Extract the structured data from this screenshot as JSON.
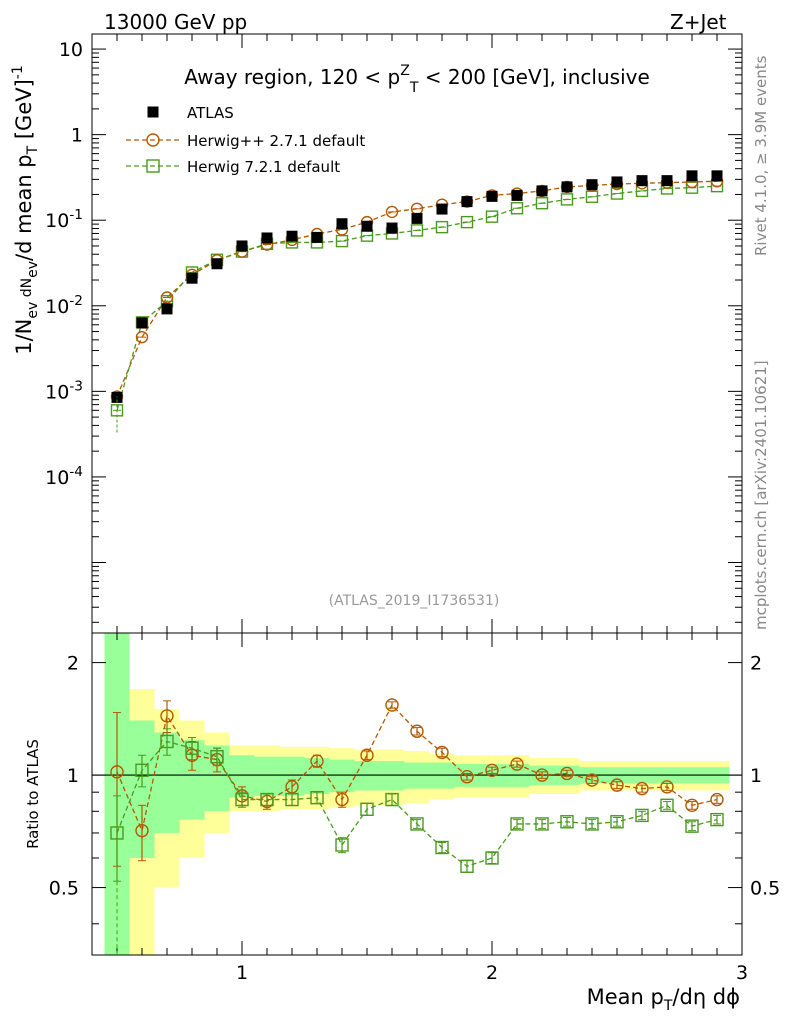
{
  "header": {
    "left": "13000 GeV pp",
    "right": "Z+Jet"
  },
  "side_labels": {
    "rivet": "Rivet 4.1.0, ≥ 3.9M events",
    "mcplots": "mcplots.cern.ch [arXiv:2401.10621]"
  },
  "chart_data": [
    {
      "type": "scatter",
      "title": "Away region, 120 < p_T^Z < 200 [GeV], inclusive",
      "watermark": "(ATLAS_2019_I1736531)",
      "ylabel": "1/N_ev dN_ev/d mean p_T [GeV]^-1",
      "yscale": "log",
      "ylim": [
        1.5e-06,
        15
      ],
      "xlim": [
        0.4,
        3.0
      ],
      "ytick_labels": [
        "10",
        "1",
        "10^-1",
        "10^-2",
        "10^-3",
        "10^-4"
      ],
      "legend_position": "top-left",
      "x": [
        0.5,
        0.6,
        0.7,
        0.8,
        0.9,
        1.0,
        1.1,
        1.2,
        1.3,
        1.4,
        1.5,
        1.6,
        1.7,
        1.8,
        1.9,
        2.0,
        2.1,
        2.2,
        2.3,
        2.4,
        2.5,
        2.6,
        2.7,
        2.8,
        2.9
      ],
      "series": [
        {
          "name": "ATLAS",
          "color": "#000000",
          "marker": "filled-square",
          "values": [
            0.00085,
            0.0063,
            0.0092,
            0.021,
            0.031,
            0.05,
            0.062,
            0.065,
            0.063,
            0.091,
            0.085,
            0.081,
            0.105,
            0.135,
            0.165,
            0.19,
            0.195,
            0.22,
            0.245,
            0.26,
            0.28,
            0.29,
            0.29,
            0.33,
            0.33
          ]
        },
        {
          "name": "Herwig++ 2.7.1 default",
          "color": "#b35900",
          "marker": "open-circle",
          "values": [
            0.00087,
            0.0043,
            0.0125,
            0.023,
            0.034,
            0.043,
            0.052,
            0.059,
            0.069,
            0.078,
            0.095,
            0.125,
            0.136,
            0.152,
            0.165,
            0.195,
            0.205,
            0.22,
            0.245,
            0.255,
            0.265,
            0.27,
            0.275,
            0.28,
            0.285
          ]
        },
        {
          "name": "Herwig 7.2.1 default",
          "color": "#4a9a1f",
          "marker": "open-square",
          "values": [
            0.0006,
            0.0064,
            0.0113,
            0.0245,
            0.0345,
            0.043,
            0.053,
            0.055,
            0.055,
            0.057,
            0.066,
            0.07,
            0.076,
            0.083,
            0.095,
            0.11,
            0.138,
            0.158,
            0.175,
            0.188,
            0.205,
            0.22,
            0.235,
            0.24,
            0.25
          ]
        }
      ]
    },
    {
      "type": "scatter",
      "ylabel": "Ratio to ATLAS",
      "xlabel": "Mean p_T/dη dϕ",
      "xlim": [
        0.4,
        3.0
      ],
      "ylim": [
        0.33,
        2.4
      ],
      "ytick_labels": [
        "2",
        "1",
        "0.5"
      ],
      "xtick_labels": [
        "1",
        "2",
        "3"
      ],
      "x": [
        0.5,
        0.6,
        0.7,
        0.8,
        0.9,
        1.0,
        1.1,
        1.2,
        1.3,
        1.4,
        1.5,
        1.6,
        1.7,
        1.8,
        1.9,
        2.0,
        2.1,
        2.2,
        2.3,
        2.4,
        2.5,
        2.6,
        2.7,
        2.8,
        2.9
      ],
      "bands": {
        "stat_half_width": [
          1.4,
          0.4,
          0.3,
          0.24,
          0.2,
          0.13,
          0.12,
          0.12,
          0.11,
          0.1,
          0.09,
          0.09,
          0.08,
          0.08,
          0.07,
          0.07,
          0.07,
          0.06,
          0.06,
          0.05,
          0.05,
          0.05,
          0.05,
          0.05,
          0.05
        ],
        "total_half_width": [
          1.4,
          0.7,
          0.5,
          0.4,
          0.3,
          0.2,
          0.2,
          0.19,
          0.19,
          0.18,
          0.17,
          0.17,
          0.16,
          0.14,
          0.13,
          0.13,
          0.13,
          0.11,
          0.11,
          0.09,
          0.09,
          0.09,
          0.09,
          0.09,
          0.09
        ],
        "stat_color": "#99ff99",
        "total_color": "#ffff99"
      },
      "series": [
        {
          "name": "Herwig++ 2.7.1 default",
          "color": "#b35900",
          "values": [
            1.02,
            0.71,
            1.44,
            1.13,
            1.1,
            0.88,
            0.85,
            0.93,
            1.09,
            0.86,
            1.13,
            1.54,
            1.31,
            1.15,
            0.99,
            1.03,
            1.07,
            1.0,
            1.01,
            0.97,
            0.94,
            0.92,
            0.93,
            0.83,
            0.86
          ],
          "errors": [
            0.45,
            0.12,
            0.14,
            0.1,
            0.08,
            0.05,
            0.04,
            0.04,
            0.04,
            0.04,
            0.03,
            0.03,
            0.03,
            0.03,
            0.02,
            0.02,
            0.02,
            0.02,
            0.02,
            0.02,
            0.02,
            0.02,
            0.02,
            0.02,
            0.02
          ]
        },
        {
          "name": "Herwig 7.2.1 default",
          "color": "#4a9a1f",
          "values": [
            0.7,
            1.03,
            1.23,
            1.18,
            1.12,
            0.86,
            0.86,
            0.86,
            0.87,
            0.65,
            0.81,
            0.86,
            0.74,
            0.64,
            0.57,
            0.6,
            0.74,
            0.74,
            0.75,
            0.74,
            0.75,
            0.78,
            0.83,
            0.73,
            0.76
          ],
          "errors": [
            0.18,
            0.1,
            0.1,
            0.08,
            0.06,
            0.04,
            0.03,
            0.03,
            0.03,
            0.03,
            0.03,
            0.03,
            0.02,
            0.02,
            0.02,
            0.02,
            0.02,
            0.02,
            0.02,
            0.02,
            0.02,
            0.02,
            0.02,
            0.02,
            0.02
          ]
        }
      ]
    }
  ]
}
